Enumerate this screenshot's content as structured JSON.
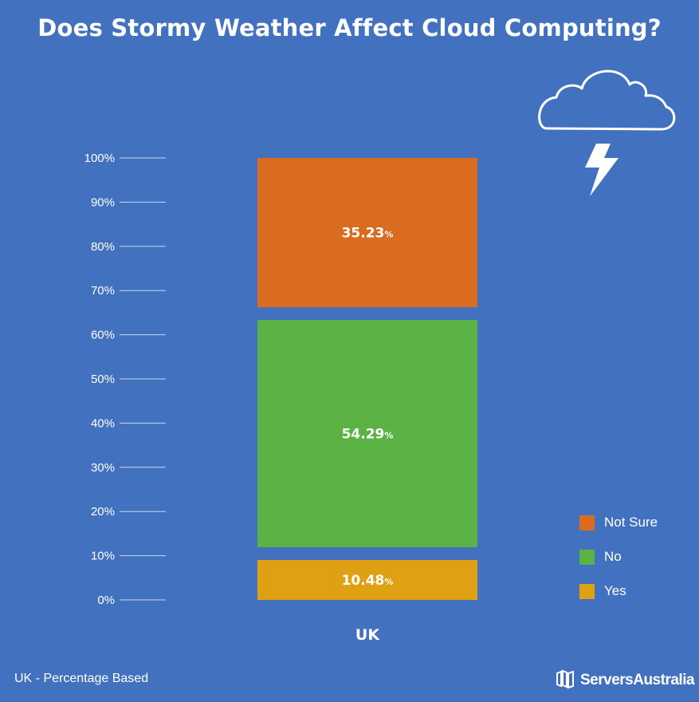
{
  "title": "Does Stormy Weather Affect Cloud Computing?",
  "chart_data": {
    "type": "bar",
    "stacked": true,
    "categories": [
      "UK"
    ],
    "series": [
      {
        "name": "Yes",
        "values": [
          10.48
        ],
        "label": "10.48",
        "color": "#e0a014"
      },
      {
        "name": "No",
        "values": [
          54.29
        ],
        "label": "54.29",
        "color": "#5bb345"
      },
      {
        "name": "Not Sure",
        "values": [
          35.23
        ],
        "label": "35.23",
        "color": "#d96c1e"
      }
    ],
    "y_ticks": [
      "0%",
      "10%",
      "20%",
      "30%",
      "40%",
      "50%",
      "60%",
      "70%",
      "80%",
      "90%",
      "100%"
    ],
    "ylim": [
      0,
      100
    ],
    "value_suffix": "%",
    "xlabel": "UK",
    "legend": [
      "Not Sure",
      "No",
      "Yes"
    ],
    "legend_position": "bottom-right"
  },
  "footer": {
    "note": "UK - Percentage Based",
    "brand": "ServersAustralia"
  },
  "icons": {
    "weather": "cloud-lightning-icon",
    "brand_logo": "servers-australia-logo"
  },
  "colors": {
    "background": "#4272bf",
    "text": "#ffffff"
  }
}
